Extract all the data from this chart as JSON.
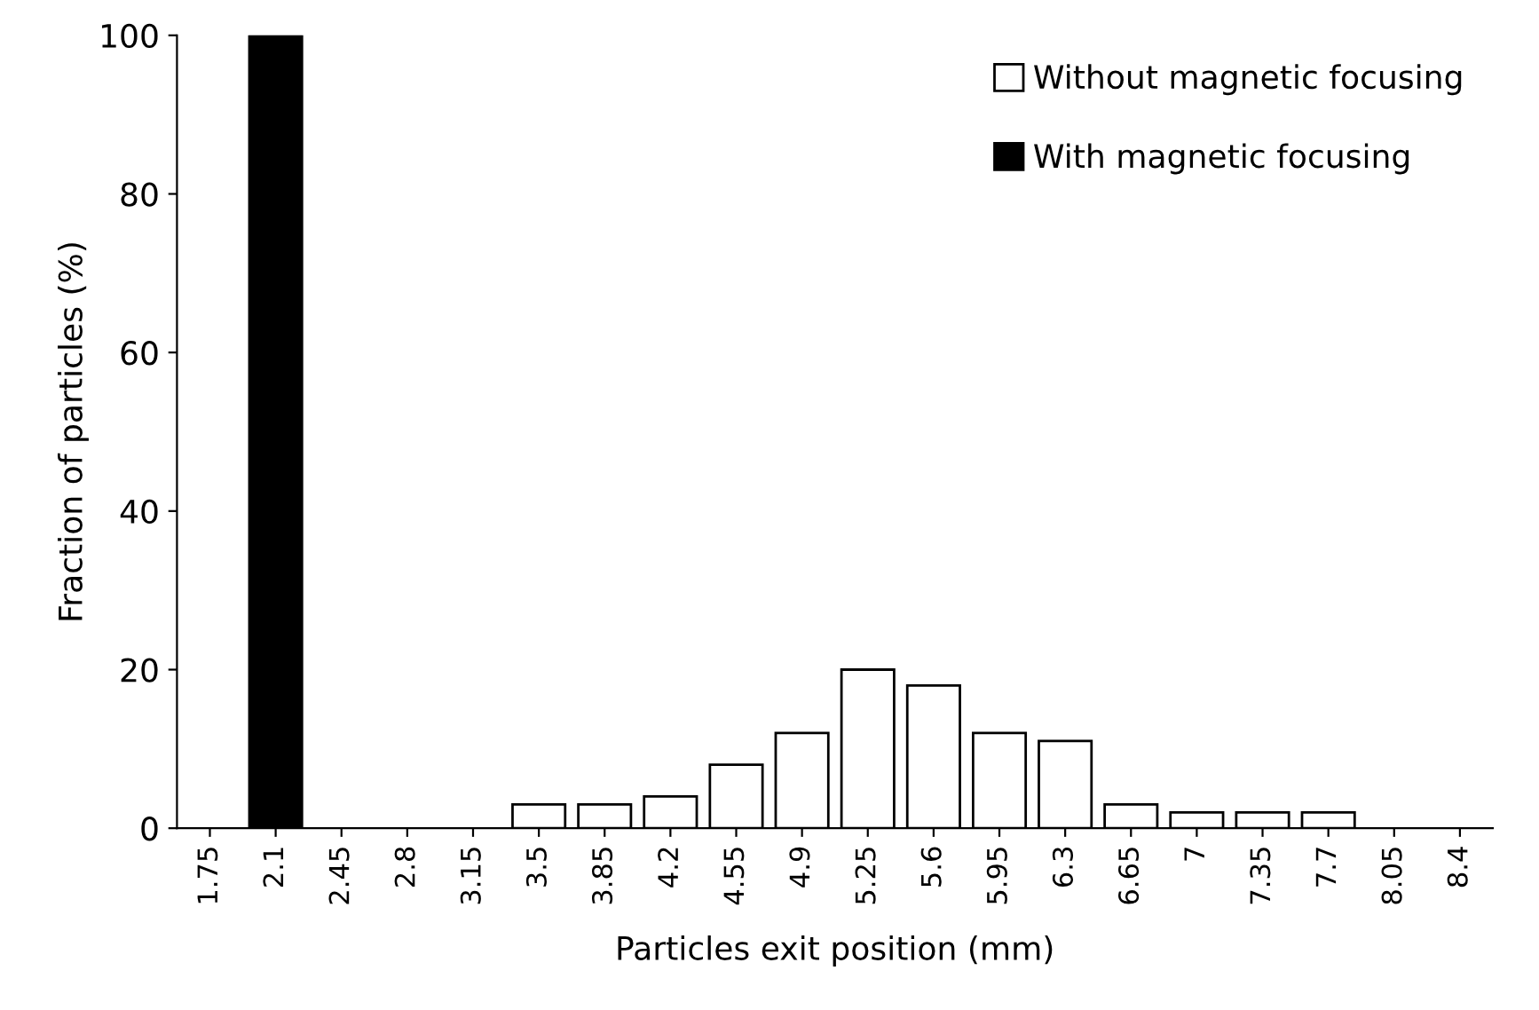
{
  "chart_data": {
    "type": "bar",
    "xlabel": "Particles exit position (mm)",
    "ylabel": "Fraction of particles (%)",
    "categories": [
      "1.75",
      "2.1",
      "2.45",
      "2.8",
      "3.15",
      "3.5",
      "3.85",
      "4.2",
      "4.55",
      "4.9",
      "5.25",
      "5.6",
      "5.95",
      "6.3",
      "6.65",
      "7",
      "7.35",
      "7.7",
      "8.05",
      "8.4"
    ],
    "series": [
      {
        "name": "Without magnetic focusing",
        "color": "#ffffff",
        "values": [
          0,
          0,
          0,
          0,
          0,
          3,
          3,
          4,
          8,
          12,
          20,
          18,
          12,
          11,
          3,
          2,
          2,
          2,
          0,
          0
        ]
      },
      {
        "name": "With magnetic focusing",
        "color": "#000000",
        "values": [
          0,
          100,
          0,
          0,
          0,
          0,
          0,
          0,
          0,
          0,
          0,
          0,
          0,
          0,
          0,
          0,
          0,
          0,
          0,
          0
        ]
      }
    ],
    "ylim": [
      0,
      100
    ],
    "yticks": [
      0,
      20,
      40,
      60,
      80,
      100
    ],
    "grid": false,
    "legend": "top right"
  }
}
